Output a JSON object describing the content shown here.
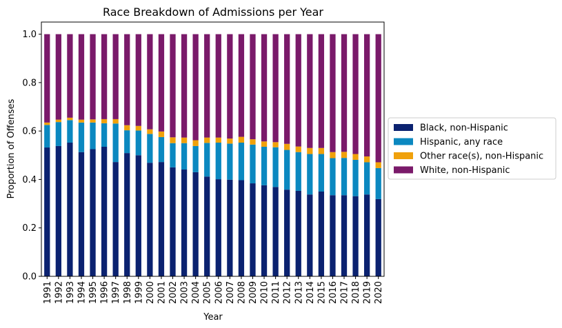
{
  "chart_data": {
    "type": "bar",
    "stacked": true,
    "title": "Race Breakdown of Admissions per Year",
    "xlabel": "Year",
    "ylabel": "Proportion of Offenses",
    "ylim": [
      0,
      1.05
    ],
    "yticks": [
      "0.0",
      "0.2",
      "0.4",
      "0.6",
      "0.8",
      "1.0"
    ],
    "legend_position": "center-right",
    "grid": false,
    "categories": [
      "1991",
      "1992",
      "1993",
      "1994",
      "1995",
      "1996",
      "1997",
      "1998",
      "1999",
      "2000",
      "2001",
      "2002",
      "2003",
      "2004",
      "2005",
      "2006",
      "2007",
      "2008",
      "2009",
      "2010",
      "2011",
      "2012",
      "2013",
      "2014",
      "2015",
      "2016",
      "2017",
      "2018",
      "2019",
      "2020"
    ],
    "series": [
      {
        "name": "Black, non-Hispanic",
        "color": "#0b2270",
        "values": [
          0.532,
          0.538,
          0.552,
          0.513,
          0.525,
          0.535,
          0.472,
          0.509,
          0.5,
          0.469,
          0.472,
          0.45,
          0.441,
          0.43,
          0.412,
          0.401,
          0.399,
          0.397,
          0.384,
          0.376,
          0.369,
          0.358,
          0.353,
          0.338,
          0.35,
          0.335,
          0.335,
          0.331,
          0.338,
          0.319
        ]
      },
      {
        "name": "Hispanic, any race",
        "color": "#0b88c0",
        "values": [
          0.093,
          0.099,
          0.093,
          0.122,
          0.11,
          0.097,
          0.159,
          0.094,
          0.102,
          0.119,
          0.103,
          0.1,
          0.109,
          0.108,
          0.139,
          0.151,
          0.149,
          0.155,
          0.16,
          0.159,
          0.164,
          0.164,
          0.16,
          0.167,
          0.155,
          0.153,
          0.154,
          0.15,
          0.133,
          0.128
        ]
      },
      {
        "name": "Other race(s), non-Hispanic",
        "color": "#f0a10b",
        "values": [
          0.01,
          0.01,
          0.01,
          0.012,
          0.013,
          0.017,
          0.018,
          0.021,
          0.019,
          0.019,
          0.023,
          0.024,
          0.023,
          0.024,
          0.022,
          0.021,
          0.021,
          0.024,
          0.022,
          0.022,
          0.021,
          0.025,
          0.023,
          0.025,
          0.025,
          0.025,
          0.025,
          0.024,
          0.024,
          0.024
        ]
      },
      {
        "name": "White, non-Hispanic",
        "color": "#7a1a6a",
        "values": [
          0.365,
          0.353,
          0.345,
          0.353,
          0.352,
          0.351,
          0.351,
          0.376,
          0.379,
          0.393,
          0.402,
          0.426,
          0.427,
          0.438,
          0.427,
          0.427,
          0.431,
          0.424,
          0.434,
          0.443,
          0.446,
          0.453,
          0.464,
          0.47,
          0.47,
          0.487,
          0.486,
          0.495,
          0.505,
          0.529
        ]
      }
    ]
  }
}
